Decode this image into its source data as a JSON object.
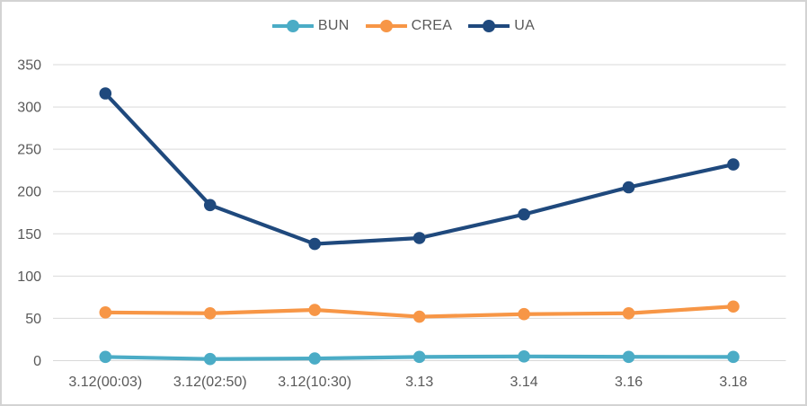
{
  "figure": {
    "background": "#FFFFFF",
    "border_color": "#D3D3D3"
  },
  "chart_data": {
    "type": "line",
    "title": "",
    "xlabel": "",
    "ylabel": "",
    "categories": [
      "3.12(00:03)",
      "3.12(02:50)",
      "3.12(10:30)",
      "3.13",
      "3.14",
      "3.16",
      "3.18"
    ],
    "series": [
      {
        "name": "BUN",
        "color": "#4BACC6",
        "values": [
          4.4,
          1.9,
          2.6,
          4.4,
          5.0,
          4.5,
          4.4
        ]
      },
      {
        "name": "CREA",
        "color": "#F79646",
        "values": [
          57,
          56,
          60,
          52,
          55,
          56,
          64
        ]
      },
      {
        "name": "UA",
        "color": "#1F497D",
        "values": [
          316,
          184,
          138,
          145,
          173,
          205,
          232
        ]
      }
    ],
    "yticks": [
      0,
      50,
      100,
      150,
      200,
      250,
      300,
      350
    ],
    "ylim": [
      0,
      350
    ],
    "grid": true,
    "legend_position": "top-center",
    "gridline_color": "#D9D9D9",
    "axis_label_color": "#595959",
    "axis_font_size": 16
  }
}
